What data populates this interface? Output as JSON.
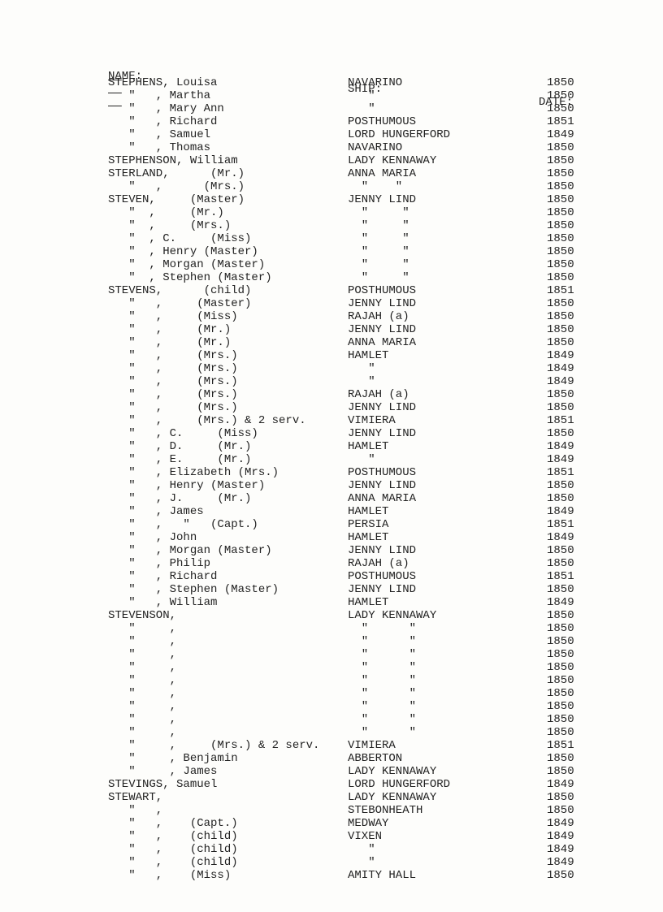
{
  "header": {
    "name": "NAME:",
    "ship": "SHIP:",
    "date": "DATE:"
  },
  "rows": [
    {
      "name": "STEPHENS, Louisa",
      "ship": "NAVARINO",
      "date": "1850"
    },
    {
      "name": "   \"   , Martha",
      "ship": "   \"",
      "date": "1850"
    },
    {
      "name": "   \"   , Mary Ann",
      "ship": "   \"",
      "date": "1850"
    },
    {
      "name": "   \"   , Richard",
      "ship": "POSTHUMOUS",
      "date": "1851"
    },
    {
      "name": "   \"   , Samuel",
      "ship": "LORD HUNGERFORD",
      "date": "1849"
    },
    {
      "name": "   \"   , Thomas",
      "ship": "NAVARINO",
      "date": "1850"
    },
    {
      "name": "STEPHENSON, William",
      "ship": "LADY KENNAWAY",
      "date": "1850"
    },
    {
      "name": "STERLAND,      (Mr.)",
      "ship": "ANNA MARIA",
      "date": "1850"
    },
    {
      "name": "   \"   ,      (Mrs.)",
      "ship": "  \"    \"",
      "date": "1850"
    },
    {
      "name": "STEVEN,     (Master)",
      "ship": "JENNY LIND",
      "date": "1850"
    },
    {
      "name": "   \"  ,     (Mr.)",
      "ship": "  \"     \"",
      "date": "1850"
    },
    {
      "name": "   \"  ,     (Mrs.)",
      "ship": "  \"     \"",
      "date": "1850"
    },
    {
      "name": "   \"  , C.     (Miss)",
      "ship": "  \"     \"",
      "date": "1850"
    },
    {
      "name": "   \"  , Henry (Master)",
      "ship": "  \"     \"",
      "date": "1850"
    },
    {
      "name": "   \"  , Morgan (Master)",
      "ship": "  \"     \"",
      "date": "1850"
    },
    {
      "name": "   \"  , Stephen (Master)",
      "ship": "  \"     \"",
      "date": "1850"
    },
    {
      "name": "STEVENS,      (child)",
      "ship": "POSTHUMOUS",
      "date": "1851"
    },
    {
      "name": "   \"   ,     (Master)",
      "ship": "JENNY LIND",
      "date": "1850"
    },
    {
      "name": "   \"   ,     (Miss)",
      "ship": "RAJAH (a)",
      "date": "1850"
    },
    {
      "name": "   \"   ,     (Mr.)",
      "ship": "JENNY LIND",
      "date": "1850"
    },
    {
      "name": "   \"   ,     (Mr.)",
      "ship": "ANNA MARIA",
      "date": "1850"
    },
    {
      "name": "   \"   ,     (Mrs.)",
      "ship": "HAMLET",
      "date": "1849"
    },
    {
      "name": "   \"   ,     (Mrs.)",
      "ship": "   \"",
      "date": "1849"
    },
    {
      "name": "   \"   ,     (Mrs.)",
      "ship": "   \"",
      "date": "1849"
    },
    {
      "name": "   \"   ,     (Mrs.)",
      "ship": "RAJAH (a)",
      "date": "1850"
    },
    {
      "name": "   \"   ,     (Mrs.)",
      "ship": "JENNY LIND",
      "date": "1850"
    },
    {
      "name": "   \"   ,     (Mrs.) & 2 serv.",
      "ship": "VIMIERA",
      "date": "1851"
    },
    {
      "name": "   \"   , C.     (Miss)",
      "ship": "JENNY LIND",
      "date": "1850"
    },
    {
      "name": "   \"   , D.     (Mr.)",
      "ship": "HAMLET",
      "date": "1849"
    },
    {
      "name": "   \"   , E.     (Mr.)",
      "ship": "   \"",
      "date": "1849"
    },
    {
      "name": "   \"   , Elizabeth (Mrs.)",
      "ship": "POSTHUMOUS",
      "date": "1851"
    },
    {
      "name": "   \"   , Henry (Master)",
      "ship": "JENNY LIND",
      "date": "1850"
    },
    {
      "name": "   \"   , J.     (Mr.)",
      "ship": "ANNA MARIA",
      "date": "1850"
    },
    {
      "name": "   \"   , James",
      "ship": "HAMLET",
      "date": "1849"
    },
    {
      "name": "   \"   ,   \"   (Capt.)",
      "ship": "PERSIA",
      "date": "1851"
    },
    {
      "name": "   \"   , John",
      "ship": "HAMLET",
      "date": "1849"
    },
    {
      "name": "   \"   , Morgan (Master)",
      "ship": "JENNY LIND",
      "date": "1850"
    },
    {
      "name": "   \"   , Philip",
      "ship": "RAJAH (a)",
      "date": "1850"
    },
    {
      "name": "   \"   , Richard",
      "ship": "POSTHUMOUS",
      "date": "1851"
    },
    {
      "name": "   \"   , Stephen (Master)",
      "ship": "JENNY LIND",
      "date": "1850"
    },
    {
      "name": "   \"   , William",
      "ship": "HAMLET",
      "date": "1849"
    },
    {
      "name": "STEVENSON,",
      "ship": "LADY KENNAWAY",
      "date": "1850"
    },
    {
      "name": "   \"     ,",
      "ship": "  \"      \"",
      "date": "1850"
    },
    {
      "name": "   \"     ,",
      "ship": "  \"      \"",
      "date": "1850"
    },
    {
      "name": "   \"     ,",
      "ship": "  \"      \"",
      "date": "1850"
    },
    {
      "name": "   \"     ,",
      "ship": "  \"      \"",
      "date": "1850"
    },
    {
      "name": "   \"     ,",
      "ship": "  \"      \"",
      "date": "1850"
    },
    {
      "name": "   \"     ,",
      "ship": "  \"      \"",
      "date": "1850"
    },
    {
      "name": "   \"     ,",
      "ship": "  \"      \"",
      "date": "1850"
    },
    {
      "name": "   \"     ,",
      "ship": "  \"      \"",
      "date": "1850"
    },
    {
      "name": "   \"     ,",
      "ship": "  \"      \"",
      "date": "1850"
    },
    {
      "name": "   \"     ,     (Mrs.) & 2 serv.",
      "ship": "VIMIERA",
      "date": "1851"
    },
    {
      "name": "   \"     , Benjamin",
      "ship": "ABBERTON",
      "date": "1850"
    },
    {
      "name": "   \"     , James",
      "ship": "LADY KENNAWAY",
      "date": "1850"
    },
    {
      "name": "STEVINGS, Samuel",
      "ship": "LORD HUNGERFORD",
      "date": "1849"
    },
    {
      "name": "STEWART,",
      "ship": "LADY KENNAWAY",
      "date": "1850"
    },
    {
      "name": "   \"   ,",
      "ship": "STEBONHEATH",
      "date": "1850"
    },
    {
      "name": "   \"   ,    (Capt.)",
      "ship": "MEDWAY",
      "date": "1849"
    },
    {
      "name": "   \"   ,    (child)",
      "ship": "VIXEN",
      "date": "1849"
    },
    {
      "name": "   \"   ,    (child)",
      "ship": "   \"",
      "date": "1849"
    },
    {
      "name": "   \"   ,    (child)",
      "ship": "   \"",
      "date": "1849"
    },
    {
      "name": "   \"   ,    (Miss)",
      "ship": "AMITY HALL",
      "date": "1850"
    }
  ]
}
